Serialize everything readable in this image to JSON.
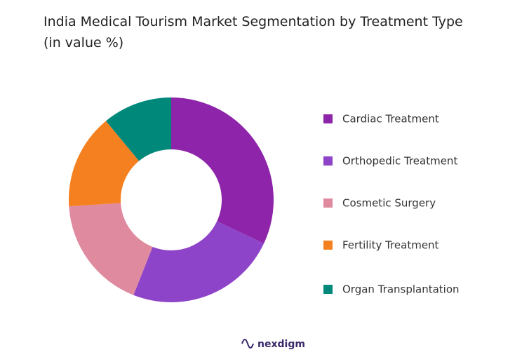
{
  "chart_data": {
    "type": "donut",
    "title": "India Medical Tourism Market Segmentation by Treatment Type (in value %)",
    "categories": [
      "Cardiac Treatment",
      "Orthopedic Treatment",
      "Cosmetic Surgery",
      "Fertility Treatment",
      "Organ Transplantation"
    ],
    "values": [
      32,
      24,
      18,
      15,
      11
    ],
    "colors": [
      "#8e24aa",
      "#8e44c8",
      "#e08aa0",
      "#f5801f",
      "#00897b"
    ],
    "legend": "right"
  },
  "brand": "nexdigm"
}
